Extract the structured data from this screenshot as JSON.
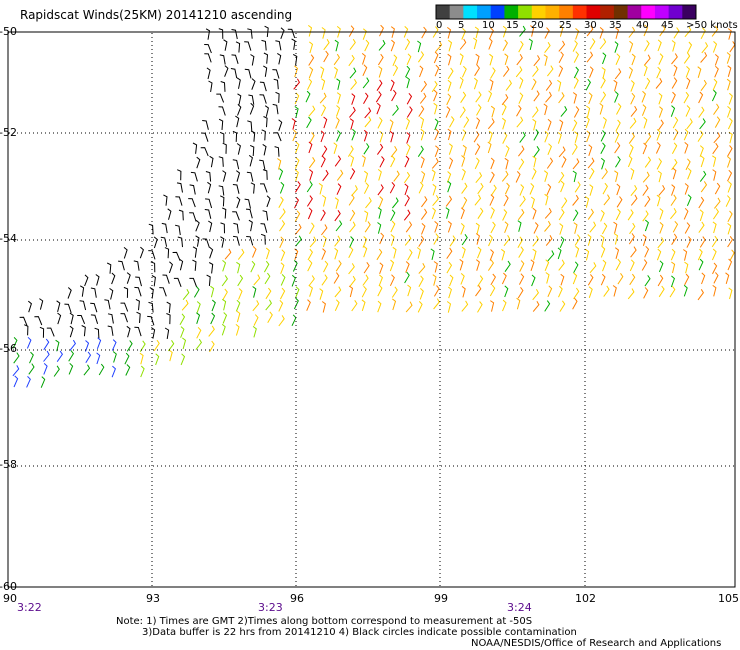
{
  "title": "Rapidscat Winds(25KM) 20141210 ascending",
  "legend": {
    "labels": [
      "0",
      "5",
      "10",
      "15",
      "20",
      "25",
      "30",
      "35",
      "40",
      "45",
      ">50 knots"
    ],
    "colors": [
      "#404040",
      "#8c8c8c",
      "#00e0ff",
      "#00a0ff",
      "#0040ff",
      "#00b000",
      "#90e000",
      "#ffd000",
      "#ffb000",
      "#ff8000",
      "#ff3000",
      "#e00000",
      "#b02000",
      "#703000",
      "#a000a0",
      "#ff00ff",
      "#c000ff",
      "#7000d0",
      "#3a0060"
    ]
  },
  "axes": {
    "lat_labels": [
      "-50",
      "-52",
      "-54",
      "-56",
      "-58",
      "-60"
    ],
    "lon_labels": [
      "90",
      "93",
      "96",
      "99",
      "102",
      "105"
    ],
    "time_labels": [
      "3:22",
      "3:23",
      "3:24"
    ]
  },
  "notes": {
    "line1": "Note: 1) Times are GMT 2)Times along bottom correspond to measurement at -50S",
    "line2": "3)Data buffer is 22 hrs from 20141210 4) Black circles indicate possible contamination",
    "line3": "NOAA/NESDIS/Office of Research and Applications"
  }
}
